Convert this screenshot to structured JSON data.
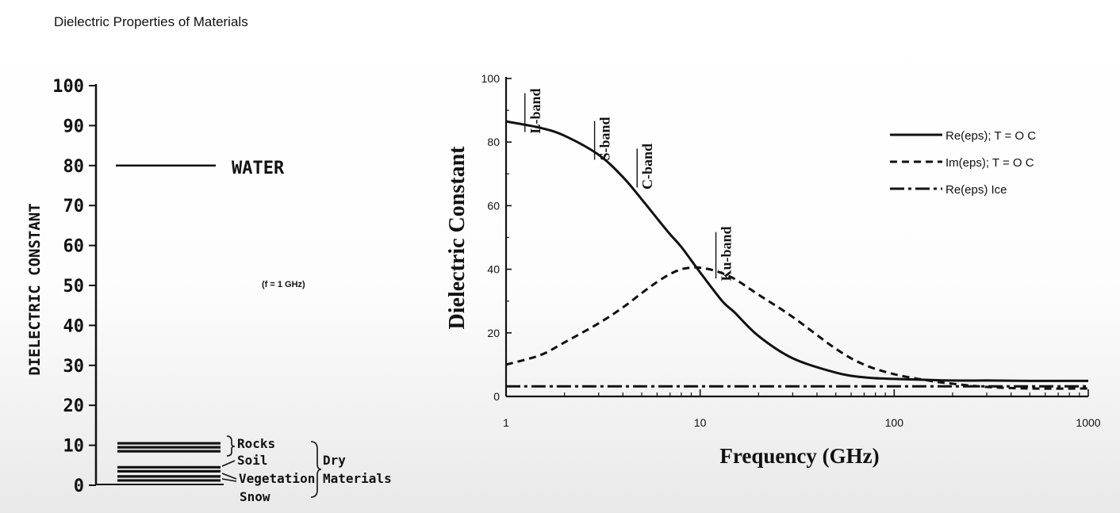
{
  "page_title": "Dielectric Properties of Materials",
  "chart_data": [
    {
      "type": "bar",
      "ylabel": "DIELECTRIC CONSTANT",
      "ylim": [
        0,
        100
      ],
      "yticks": [
        0,
        10,
        20,
        30,
        40,
        50,
        60,
        70,
        80,
        90,
        100
      ],
      "annotation": "(f = 1 GHz)",
      "levels": [
        {
          "label": "WATER",
          "value": 80
        },
        {
          "label": "Rocks",
          "value": 10.5
        },
        {
          "label": "Rocks",
          "value": 9.5
        },
        {
          "label": "Rocks",
          "value": 8.5
        },
        {
          "label": "Soil",
          "value": 4.5
        },
        {
          "label": "Soil",
          "value": 3.5
        },
        {
          "label": "Vegetation",
          "value": 2.2
        },
        {
          "label": "Snow",
          "value": 1.2
        }
      ],
      "group_labels": {
        "rocks": "Rocks",
        "soil": "Soil",
        "vegetation": "Vegetation",
        "snow": "Snow",
        "dry_line1": "Dry",
        "dry_line2": "Materials"
      }
    },
    {
      "type": "line",
      "xlabel": "Frequency (GHz)",
      "ylabel": "Dielectric Constant",
      "xscale": "log",
      "xlim": [
        1,
        1000
      ],
      "ylim": [
        0,
        100
      ],
      "xticks": [
        1,
        10,
        100,
        1000
      ],
      "yticks": [
        0,
        20,
        40,
        60,
        80,
        100
      ],
      "bands": [
        {
          "label": "L-band",
          "x": 1.4
        },
        {
          "label": "S-band",
          "x": 3.2
        },
        {
          "label": "C-band",
          "x": 5.3
        },
        {
          "label": "Ku-band",
          "x": 13.5
        }
      ],
      "legend_position": "top-right",
      "series": [
        {
          "name": "Re(eps); T = O C",
          "style": "solid",
          "x": [
            1,
            1.5,
            2,
            3,
            4,
            5,
            6,
            7,
            8,
            10,
            13,
            15,
            20,
            30,
            50,
            70,
            100,
            150,
            200,
            300,
            500,
            1000
          ],
          "y": [
            86.5,
            84.5,
            82,
            76,
            69,
            62,
            56,
            51,
            47,
            39,
            30,
            26.5,
            19,
            12,
            7.5,
            6,
            5.5,
            5.2,
            5,
            5,
            4.9,
            4.9
          ]
        },
        {
          "name": "Im(eps); T = O C",
          "style": "dashed",
          "x": [
            1,
            1.5,
            2,
            3,
            4,
            5,
            6,
            7,
            8,
            9,
            10,
            12,
            15,
            20,
            30,
            50,
            70,
            100,
            150,
            200,
            300,
            500,
            1000
          ],
          "y": [
            10,
            13,
            17,
            23,
            28,
            32.5,
            36,
            38.5,
            40,
            40.5,
            40.5,
            39.5,
            37,
            32,
            25,
            15,
            10,
            7,
            5,
            4,
            3,
            2.5,
            2.5
          ]
        },
        {
          "name": "Re(eps) Ice",
          "style": "dash-dot",
          "x": [
            1,
            10,
            100,
            1000
          ],
          "y": [
            3.2,
            3.2,
            3.2,
            3.2
          ]
        }
      ]
    }
  ]
}
